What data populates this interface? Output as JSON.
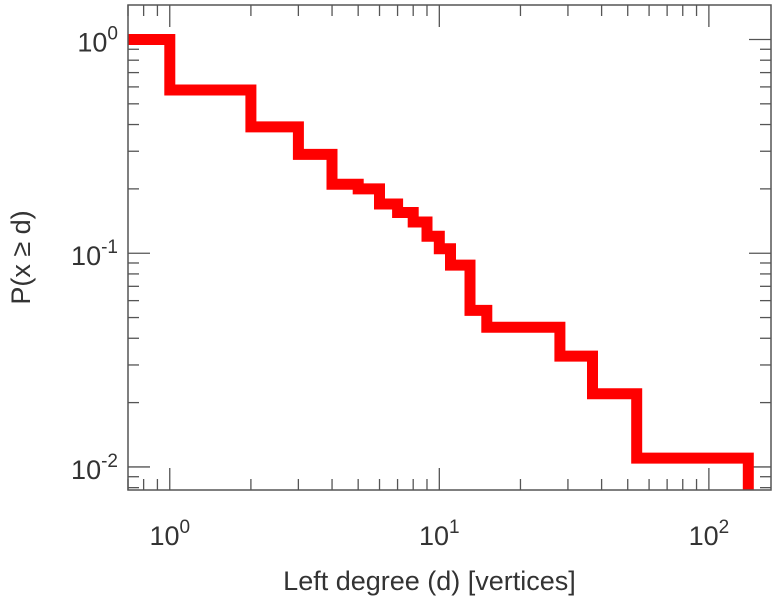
{
  "chart_data": {
    "type": "line",
    "drawstyle": "step",
    "xlabel": "Left degree (d) [vertices]",
    "ylabel": "P(x ≥ d)",
    "xscale": "log",
    "yscale": "log",
    "xlim": [
      0.7,
      170
    ],
    "ylim": [
      0.0078,
      1.45
    ],
    "grid": false,
    "line_color": "#ff0000",
    "x_ticks": [
      {
        "base": "10",
        "exp": "0"
      },
      {
        "base": "10",
        "exp": "1"
      },
      {
        "base": "10",
        "exp": "2"
      }
    ],
    "y_ticks": [
      {
        "base": "10",
        "exp": "0"
      },
      {
        "base": "10",
        "exp": "-1"
      },
      {
        "base": "10",
        "exp": "-2"
      }
    ],
    "series": [
      {
        "points": [
          [
            0.7,
            1.0
          ],
          [
            1,
            1.0
          ],
          [
            1,
            0.58
          ],
          [
            2,
            0.58
          ],
          [
            2,
            0.39
          ],
          [
            3,
            0.39
          ],
          [
            3,
            0.29
          ],
          [
            4,
            0.29
          ],
          [
            4,
            0.21
          ],
          [
            5,
            0.21
          ],
          [
            5,
            0.2
          ],
          [
            6,
            0.2
          ],
          [
            6,
            0.17
          ],
          [
            7,
            0.17
          ],
          [
            7,
            0.155
          ],
          [
            8,
            0.155
          ],
          [
            8,
            0.14
          ],
          [
            9,
            0.14
          ],
          [
            9,
            0.12
          ],
          [
            10,
            0.12
          ],
          [
            10,
            0.105
          ],
          [
            11,
            0.105
          ],
          [
            11,
            0.088
          ],
          [
            13,
            0.088
          ],
          [
            13,
            0.054
          ],
          [
            15,
            0.054
          ],
          [
            15,
            0.045
          ],
          [
            28,
            0.045
          ],
          [
            28,
            0.033
          ],
          [
            37,
            0.033
          ],
          [
            37,
            0.022
          ],
          [
            54,
            0.022
          ],
          [
            54,
            0.011
          ],
          [
            140,
            0.011
          ],
          [
            140,
            0.0078
          ]
        ]
      }
    ]
  }
}
